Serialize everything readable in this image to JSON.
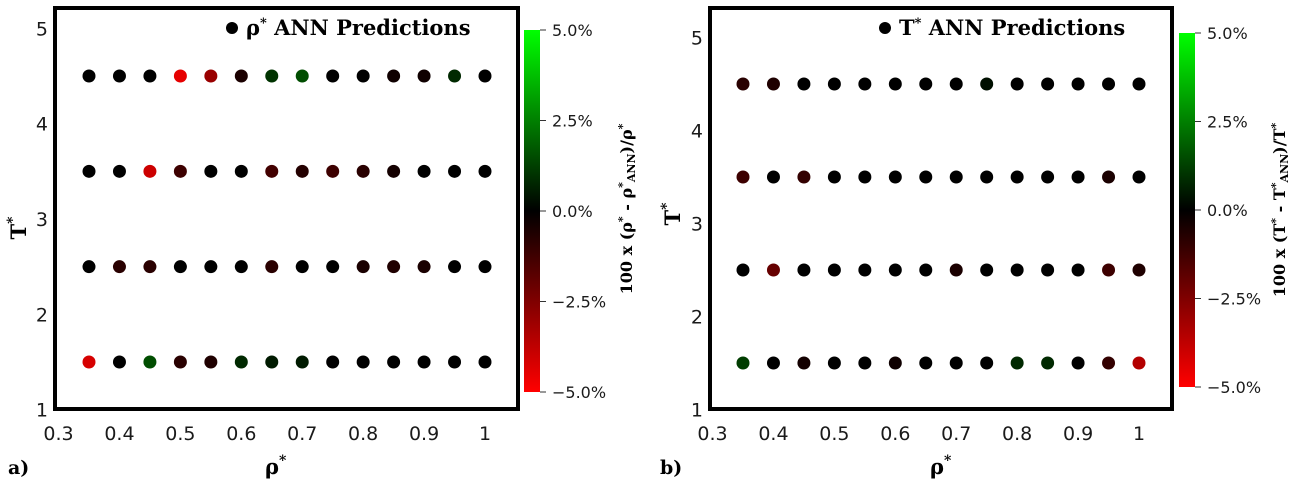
{
  "chart_data": [
    {
      "type": "scatter",
      "panel_label": "a)",
      "legend": "ρ* ANN Predictions",
      "legend_symbol": "ρ",
      "legend_text": "ANN Predictions",
      "xlabel": "ρ*",
      "ylabel": "T*",
      "xlim": [
        0.3,
        1.05
      ],
      "ylim": [
        1,
        5.25
      ],
      "xticks": [
        "0.3",
        "0.4",
        "0.5",
        "0.6",
        "0.7",
        "0.8",
        "0.9",
        "1"
      ],
      "yticks": [
        "1",
        "2",
        "3",
        "4",
        "5"
      ],
      "colorbar": {
        "label": "100 x (ρ* - ρ*ANN)/ρ*",
        "range": [
          -5,
          5
        ],
        "ticks": [
          "5.0%",
          "2.5%",
          "0.0%",
          "−2.5%",
          "−5.0%"
        ],
        "colors": [
          "#ff0000",
          "#000000",
          "#00ff00"
        ]
      },
      "x": [
        0.35,
        0.4,
        0.45,
        0.5,
        0.55,
        0.6,
        0.65,
        0.7,
        0.75,
        0.8,
        0.85,
        0.9,
        0.95,
        1.0
      ],
      "series": [
        {
          "T": 4.5,
          "error_pct": [
            0.0,
            0.0,
            0.0,
            -4.5,
            -3.0,
            -0.5,
            1.0,
            1.5,
            0.0,
            0.0,
            -0.3,
            -0.3,
            0.8,
            0.0
          ]
        },
        {
          "T": 3.5,
          "error_pct": [
            0.0,
            0.0,
            -4.0,
            -1.2,
            0.0,
            0.0,
            -1.3,
            -0.7,
            -1.2,
            -0.8,
            -0.4,
            0.0,
            0.0,
            0.0
          ]
        },
        {
          "T": 2.5,
          "error_pct": [
            0.0,
            -0.8,
            -0.8,
            0.0,
            0.0,
            0.0,
            -0.8,
            0.0,
            0.0,
            -0.5,
            -0.6,
            -0.5,
            0.0,
            0.0
          ]
        },
        {
          "T": 1.5,
          "error_pct": [
            -4.2,
            0.0,
            1.5,
            -0.8,
            -0.6,
            0.8,
            0.5,
            0.5,
            0.0,
            0.0,
            0.0,
            0.0,
            0.0,
            0.0
          ]
        }
      ]
    },
    {
      "type": "scatter",
      "panel_label": "b)",
      "legend": "T* ANN Predictions",
      "legend_symbol": "T",
      "legend_text": "ANN Predictions",
      "xlabel": "ρ*",
      "ylabel": "T*",
      "xlim": [
        0.3,
        1.05
      ],
      "ylim": [
        1,
        5.25
      ],
      "xticks": [
        "0.3",
        "0.4",
        "0.5",
        "0.6",
        "0.7",
        "0.8",
        "0.9",
        "1"
      ],
      "yticks": [
        "1",
        "2",
        "3",
        "4",
        "5"
      ],
      "colorbar": {
        "label": "100 x (T* - T*ANN)/T*",
        "range": [
          -5,
          5
        ],
        "ticks": [
          "5.0%",
          "2.5%",
          "0.0%",
          "−2.5%",
          "−5.0%"
        ],
        "colors": [
          "#ff0000",
          "#000000",
          "#00ff00"
        ]
      },
      "x": [
        0.35,
        0.4,
        0.45,
        0.5,
        0.55,
        0.6,
        0.65,
        0.7,
        0.75,
        0.8,
        0.85,
        0.9,
        0.95,
        1.0
      ],
      "series": [
        {
          "T": 4.5,
          "error_pct": [
            -0.8,
            -0.6,
            0.0,
            0.0,
            0.0,
            0.0,
            0.0,
            0.0,
            0.3,
            0.0,
            0.0,
            0.0,
            0.0,
            0.0
          ]
        },
        {
          "T": 3.5,
          "error_pct": [
            -1.2,
            0.0,
            -1.0,
            0.0,
            0.0,
            0.0,
            0.0,
            0.0,
            0.0,
            0.0,
            0.0,
            0.0,
            -0.5,
            0.0
          ]
        },
        {
          "T": 2.5,
          "error_pct": [
            0.0,
            -2.0,
            0.0,
            0.0,
            0.0,
            0.0,
            0.0,
            -0.5,
            0.0,
            0.0,
            0.0,
            0.0,
            -1.2,
            -0.6
          ]
        },
        {
          "T": 1.5,
          "error_pct": [
            1.2,
            0.0,
            -0.4,
            0.0,
            0.0,
            -0.3,
            0.0,
            0.0,
            0.0,
            0.8,
            0.8,
            0.0,
            -1.0,
            -3.5
          ]
        }
      ]
    }
  ]
}
